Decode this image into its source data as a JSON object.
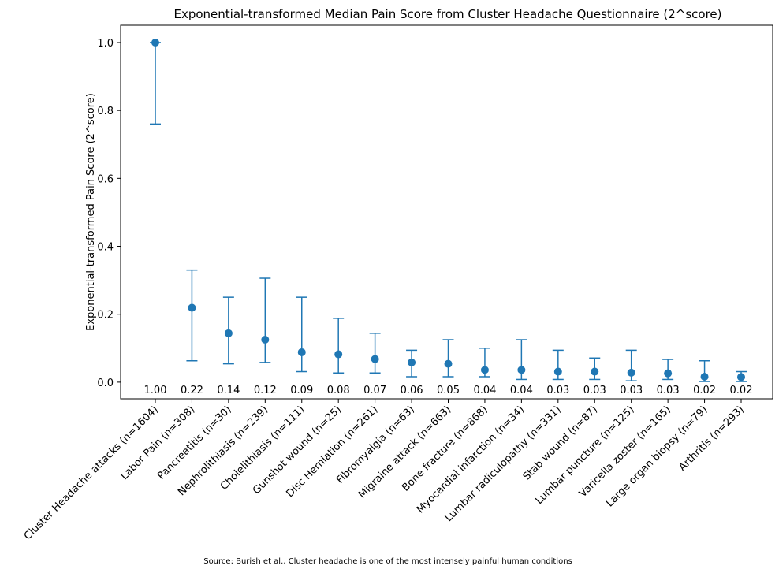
{
  "chart_data": {
    "type": "errorbar",
    "title": "Exponential-transformed Median Pain Score from Cluster Headache Questionnaire (2^score)",
    "y_label": "Exponential-transformed Pain Score (2^score)",
    "source": "Source: Burish et al., Cluster headache is one of the most intensely painful human conditions",
    "categories": [
      "Cluster Headache attacks (n=1604)",
      "Labor Pain (n=308)",
      "Pancreatitis (n=30)",
      "Nephrolithiasis (n=239)",
      "Cholelithiasis (n=111)",
      "Gunshot wound (n=25)",
      "Disc Herniation (n=261)",
      "Fibromyalgia (n=63)",
      "Migraine attack (n=663)",
      "Bone fracture (n=868)",
      "Myocardial infarction (n=34)",
      "Lumbar radiculopathy (n=331)",
      "Stab wound (n=87)",
      "Lumbar puncture (n=125)",
      "Varicella zoster (n=165)",
      "Large organ biopsy (n=79)",
      "Arthritis (n=293)"
    ],
    "series": [
      {
        "color": "#1f77b4",
        "values": [
          1.0,
          0.219,
          0.144,
          0.125,
          0.088,
          0.082,
          0.068,
          0.058,
          0.054,
          0.036,
          0.036,
          0.031,
          0.031,
          0.028,
          0.026,
          0.016,
          0.015
        ],
        "value_labels": [
          "1.00",
          "0.22",
          "0.14",
          "0.12",
          "0.09",
          "0.08",
          "0.07",
          "0.06",
          "0.05",
          "0.04",
          "0.04",
          "0.03",
          "0.03",
          "0.03",
          "0.03",
          "0.02",
          "0.02"
        ],
        "lower": [
          0.76,
          0.063,
          0.054,
          0.058,
          0.031,
          0.027,
          0.027,
          0.016,
          0.016,
          0.016,
          0.008,
          0.008,
          0.008,
          0.004,
          0.008,
          0.002,
          0.002
        ],
        "upper": [
          1.0,
          0.33,
          0.25,
          0.306,
          0.25,
          0.188,
          0.144,
          0.094,
          0.125,
          0.1,
          0.125,
          0.094,
          0.071,
          0.094,
          0.067,
          0.063,
          0.031
        ]
      }
    ],
    "ylim": [
      -0.049,
      1.051
    ],
    "yticks": [
      {
        "value": 0,
        "label": "0.0"
      },
      0.2,
      0.4,
      0.6,
      0.8,
      {
        "value": 1,
        "label": "1.0"
      }
    ]
  }
}
